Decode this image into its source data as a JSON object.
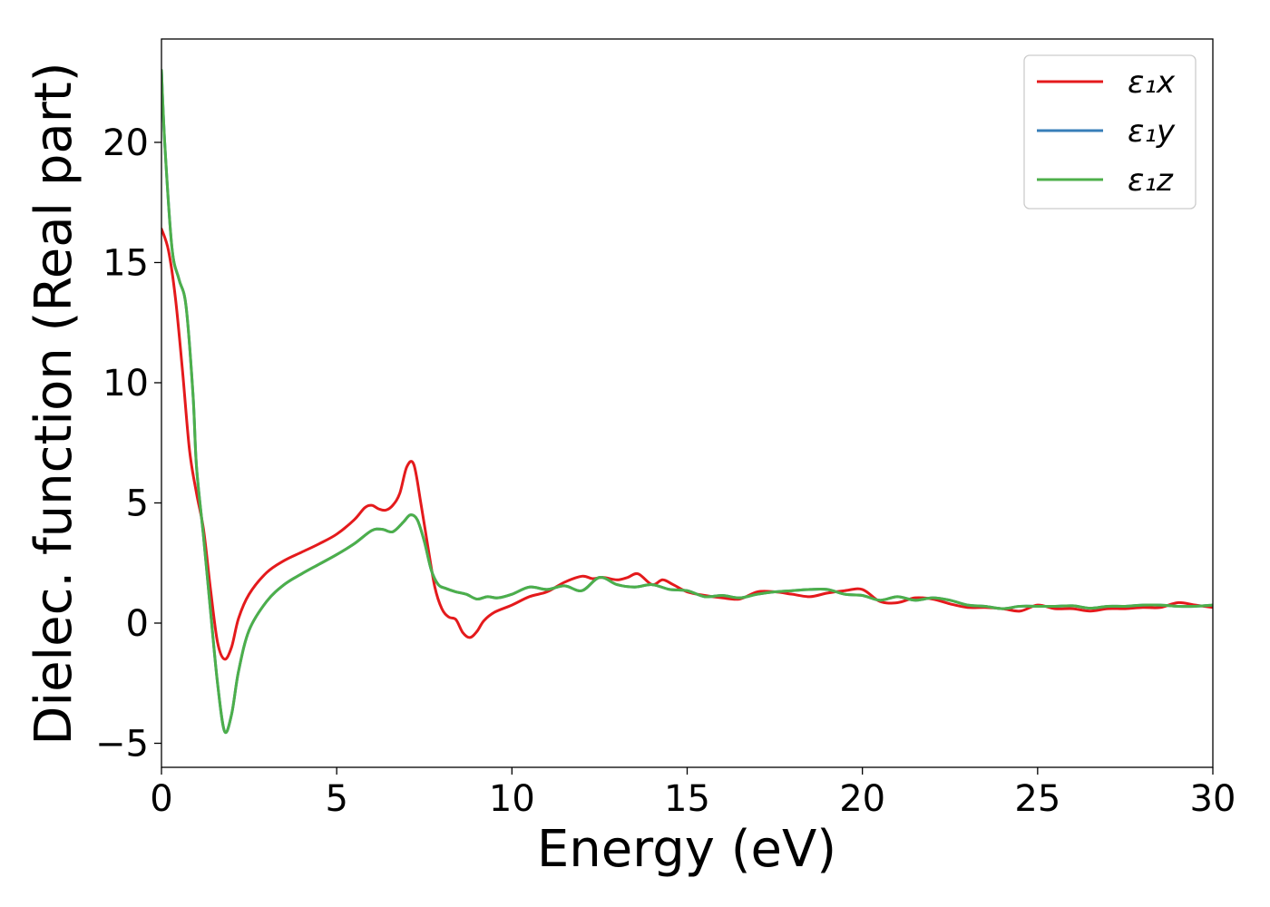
{
  "chart_data": {
    "type": "line",
    "title": "",
    "xlabel": "Energy (eV)",
    "ylabel": "Dielec. function (Real part)",
    "xlim": [
      0,
      30
    ],
    "ylim": [
      -6,
      24.3
    ],
    "xticks": [
      0,
      5,
      10,
      15,
      20,
      25,
      30
    ],
    "xtick_labels": [
      "0",
      "5",
      "10",
      "15",
      "20",
      "25",
      "30"
    ],
    "yticks": [
      -5,
      0,
      5,
      10,
      15,
      20
    ],
    "ytick_labels": [
      "−5",
      "0",
      "5",
      "10",
      "15",
      "20"
    ],
    "grid": false,
    "legend_position": "top-right",
    "series": [
      {
        "name": "ε₁x",
        "color": "#e41a1c",
        "x": [
          0,
          0.2,
          0.4,
          0.6,
          0.8,
          1.0,
          1.2,
          1.4,
          1.6,
          1.8,
          2.0,
          2.2,
          2.5,
          3.0,
          3.5,
          4.0,
          4.5,
          5.0,
          5.5,
          5.8,
          6.0,
          6.2,
          6.4,
          6.6,
          6.8,
          7.0,
          7.2,
          7.4,
          7.6,
          7.8,
          8.0,
          8.2,
          8.4,
          8.6,
          8.8,
          9.0,
          9.2,
          9.5,
          10.0,
          10.5,
          11.0,
          11.5,
          12.0,
          12.3,
          12.6,
          13.0,
          13.3,
          13.6,
          14.0,
          14.3,
          14.6,
          15.0,
          15.5,
          16.0,
          16.5,
          17.0,
          17.5,
          18.0,
          18.5,
          19.0,
          19.5,
          20.0,
          20.5,
          21.0,
          21.5,
          22.0,
          22.5,
          23.0,
          23.5,
          24.0,
          24.5,
          25.0,
          25.5,
          26.0,
          26.5,
          27.0,
          27.5,
          28.0,
          28.5,
          29.0,
          29.5,
          30.0
        ],
        "y": [
          16.4,
          15.5,
          13.5,
          10.5,
          7.2,
          5.4,
          3.9,
          1.4,
          -0.8,
          -1.5,
          -1.0,
          0.2,
          1.2,
          2.1,
          2.6,
          2.95,
          3.3,
          3.7,
          4.3,
          4.8,
          4.9,
          4.75,
          4.7,
          4.9,
          5.4,
          6.5,
          6.6,
          5.0,
          3.2,
          1.5,
          0.6,
          0.25,
          0.15,
          -0.4,
          -0.6,
          -0.35,
          0.1,
          0.45,
          0.75,
          1.1,
          1.3,
          1.7,
          1.95,
          1.85,
          1.9,
          1.8,
          1.9,
          2.05,
          1.6,
          1.8,
          1.6,
          1.3,
          1.15,
          1.05,
          1.0,
          1.3,
          1.3,
          1.2,
          1.1,
          1.25,
          1.35,
          1.4,
          0.9,
          0.85,
          1.05,
          1.0,
          0.8,
          0.65,
          0.65,
          0.6,
          0.5,
          0.75,
          0.6,
          0.6,
          0.5,
          0.6,
          0.6,
          0.65,
          0.65,
          0.85,
          0.75,
          0.65
        ]
      },
      {
        "name": "ε₁y",
        "color": "#377eb8",
        "x": [
          0,
          0.1,
          0.3,
          0.5,
          0.7,
          0.9,
          1.0,
          1.2,
          1.4,
          1.6,
          1.8,
          2.0,
          2.2,
          2.5,
          3.0,
          3.5,
          4.0,
          4.5,
          5.0,
          5.5,
          6.0,
          6.3,
          6.6,
          6.9,
          7.1,
          7.3,
          7.5,
          7.7,
          7.9,
          8.1,
          8.4,
          8.7,
          9.0,
          9.3,
          9.6,
          10.0,
          10.5,
          11.0,
          11.5,
          12.0,
          12.5,
          13.0,
          13.5,
          14.0,
          14.5,
          15.0,
          15.5,
          16.0,
          16.5,
          17.0,
          17.5,
          18.0,
          18.5,
          19.0,
          19.5,
          20.0,
          20.5,
          21.0,
          21.5,
          22.0,
          22.5,
          23.0,
          23.5,
          24.0,
          24.5,
          25.0,
          25.5,
          26.0,
          26.5,
          27.0,
          27.5,
          28.0,
          28.5,
          29.0,
          29.5,
          30.0
        ],
        "y": [
          23.0,
          19.8,
          15.6,
          14.3,
          13.2,
          9.5,
          6.5,
          3.6,
          0.5,
          -2.5,
          -4.5,
          -3.8,
          -2.0,
          -0.3,
          0.9,
          1.6,
          2.05,
          2.45,
          2.85,
          3.3,
          3.85,
          3.9,
          3.8,
          4.2,
          4.5,
          4.3,
          3.4,
          2.2,
          1.6,
          1.45,
          1.3,
          1.2,
          1.0,
          1.1,
          1.05,
          1.2,
          1.5,
          1.4,
          1.55,
          1.35,
          1.9,
          1.6,
          1.5,
          1.6,
          1.4,
          1.35,
          1.1,
          1.15,
          1.05,
          1.2,
          1.3,
          1.35,
          1.4,
          1.4,
          1.2,
          1.15,
          0.95,
          1.1,
          0.95,
          1.05,
          0.95,
          0.75,
          0.7,
          0.6,
          0.7,
          0.7,
          0.7,
          0.72,
          0.62,
          0.7,
          0.7,
          0.75,
          0.75,
          0.7,
          0.7,
          0.75
        ]
      },
      {
        "name": "ε₁z",
        "color": "#4daf4a",
        "x": [
          0,
          0.1,
          0.3,
          0.5,
          0.7,
          0.9,
          1.0,
          1.2,
          1.4,
          1.6,
          1.8,
          2.0,
          2.2,
          2.5,
          3.0,
          3.5,
          4.0,
          4.5,
          5.0,
          5.5,
          6.0,
          6.3,
          6.6,
          6.9,
          7.1,
          7.3,
          7.5,
          7.7,
          7.9,
          8.1,
          8.4,
          8.7,
          9.0,
          9.3,
          9.6,
          10.0,
          10.5,
          11.0,
          11.5,
          12.0,
          12.5,
          13.0,
          13.5,
          14.0,
          14.5,
          15.0,
          15.5,
          16.0,
          16.5,
          17.0,
          17.5,
          18.0,
          18.5,
          19.0,
          19.5,
          20.0,
          20.5,
          21.0,
          21.5,
          22.0,
          22.5,
          23.0,
          23.5,
          24.0,
          24.5,
          25.0,
          25.5,
          26.0,
          26.5,
          27.0,
          27.5,
          28.0,
          28.5,
          29.0,
          29.5,
          30.0
        ],
        "y": [
          23.0,
          19.8,
          15.6,
          14.3,
          13.2,
          9.5,
          6.5,
          3.6,
          0.5,
          -2.5,
          -4.5,
          -3.8,
          -2.0,
          -0.3,
          0.9,
          1.6,
          2.05,
          2.45,
          2.85,
          3.3,
          3.85,
          3.9,
          3.8,
          4.2,
          4.5,
          4.3,
          3.4,
          2.2,
          1.6,
          1.45,
          1.3,
          1.2,
          1.0,
          1.1,
          1.05,
          1.2,
          1.5,
          1.4,
          1.55,
          1.35,
          1.9,
          1.6,
          1.5,
          1.6,
          1.4,
          1.35,
          1.1,
          1.15,
          1.05,
          1.2,
          1.3,
          1.35,
          1.4,
          1.4,
          1.2,
          1.15,
          0.95,
          1.1,
          0.95,
          1.05,
          0.95,
          0.75,
          0.7,
          0.6,
          0.7,
          0.7,
          0.7,
          0.72,
          0.62,
          0.7,
          0.7,
          0.75,
          0.75,
          0.7,
          0.7,
          0.75
        ]
      }
    ]
  }
}
